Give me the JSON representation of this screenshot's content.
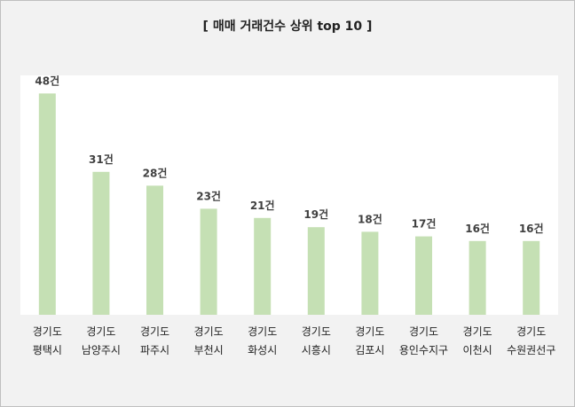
{
  "chart_data": {
    "type": "bar",
    "title": "[ 매매 거래건수 상위 top 10 ]",
    "xlabel": "",
    "ylabel": "",
    "ylim": [
      0,
      55
    ],
    "grid": false,
    "legend": "none",
    "bar_color": "#c5e0b4",
    "value_suffix": "건",
    "categories": [
      [
        "경기도",
        "평택시"
      ],
      [
        "경기도",
        "남양주시"
      ],
      [
        "경기도",
        "파주시"
      ],
      [
        "경기도",
        "부천시"
      ],
      [
        "경기도",
        "화성시"
      ],
      [
        "경기도",
        "시흥시"
      ],
      [
        "경기도",
        "김포시"
      ],
      [
        "경기도",
        "용인수지구"
      ],
      [
        "경기도",
        "이천시"
      ],
      [
        "경기도",
        "수원권선구"
      ]
    ],
    "values": [
      48,
      31,
      28,
      23,
      21,
      19,
      18,
      17,
      16,
      16
    ]
  }
}
